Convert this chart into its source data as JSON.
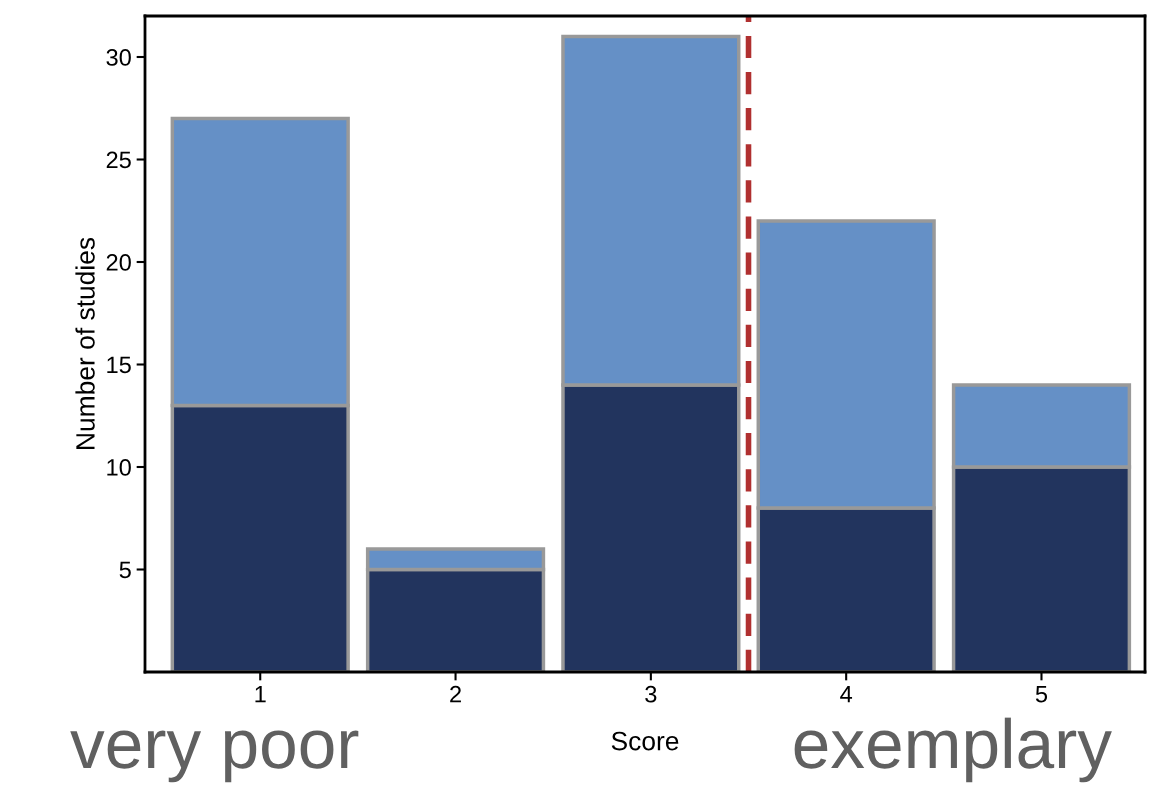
{
  "chart_data": {
    "type": "bar",
    "stacked": true,
    "xlabel": "Score",
    "ylabel": "Number of studies",
    "x": [
      1,
      2,
      3,
      4,
      5
    ],
    "series": [
      {
        "color": "#22345e",
        "values": [
          13,
          5,
          14,
          8,
          10
        ]
      },
      {
        "color": "#6590c6",
        "values": [
          14,
          1,
          17,
          14,
          4
        ]
      }
    ],
    "xlim": [
      0.41,
      5.53
    ],
    "xticks": [
      1,
      2,
      3,
      4,
      5
    ],
    "ylim": [
      0,
      32
    ],
    "yticks": [
      5,
      10,
      15,
      20,
      25,
      30
    ],
    "ref_lines": [
      {
        "axis": "x",
        "value": 3.5,
        "color": "#b03030",
        "line_style": "dashed"
      }
    ],
    "annotations": [
      "very poor",
      "exemplary"
    ],
    "grid": false,
    "legend": false
  }
}
